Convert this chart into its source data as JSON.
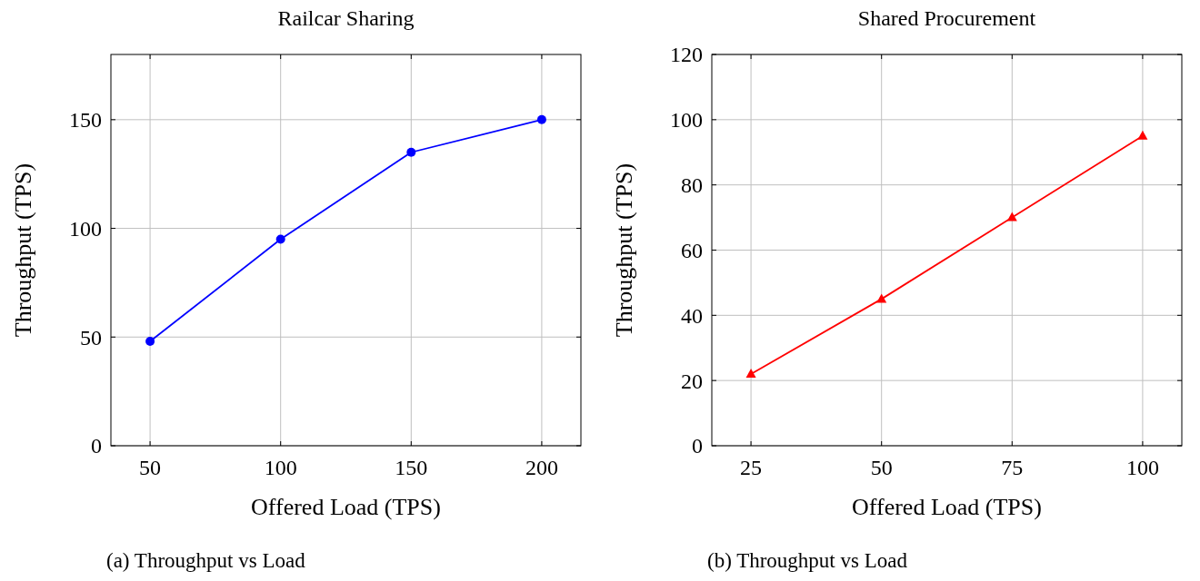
{
  "chart_data": [
    {
      "type": "line",
      "title": "Railcar Sharing",
      "xlabel": "Offered Load (TPS)",
      "ylabel": "Throughput (TPS)",
      "x": [
        50,
        100,
        150,
        200
      ],
      "series": [
        {
          "color": "#0000ff",
          "values": [
            48,
            95,
            135,
            150
          ]
        }
      ],
      "xlim": [
        35,
        215
      ],
      "xticks": [
        50,
        100,
        150,
        200
      ],
      "ylim": [
        0,
        180
      ],
      "yticks": [
        0,
        50,
        100,
        150
      ],
      "grid": true,
      "marker": "circle",
      "line_style": "solid",
      "annotations": [
        "(a) Throughput vs Load"
      ]
    },
    {
      "type": "line",
      "title": "Shared Procurement",
      "xlabel": "Offered Load (TPS)",
      "ylabel": "Throughput (TPS)",
      "x": [
        25,
        50,
        75,
        100
      ],
      "series": [
        {
          "color": "#ff0000",
          "values": [
            22,
            45,
            70,
            95
          ]
        }
      ],
      "xlim": [
        17.5,
        107.5
      ],
      "xticks": [
        25,
        50,
        75,
        100
      ],
      "ylim": [
        0,
        120
      ],
      "yticks": [
        0,
        20,
        40,
        60,
        80,
        100,
        120
      ],
      "grid": true,
      "marker": "triangle",
      "line_style": "solid",
      "annotations": [
        "(b) Throughput vs Load"
      ]
    }
  ]
}
